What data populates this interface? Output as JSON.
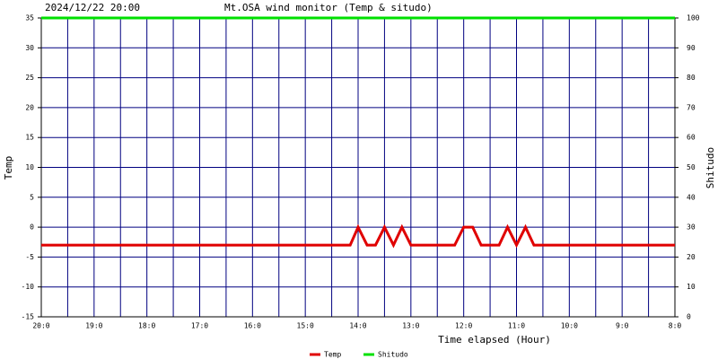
{
  "chart_data": {
    "type": "line",
    "title": "Mt.OSA wind monitor (Temp & situdo)",
    "subtitle": "2024/12/22 20:00",
    "x_label": "Time elapsed (Hour)",
    "y_label": "Temp",
    "y2_label": "Shitudo",
    "xlim": [
      0,
      12
    ],
    "xticks": [
      {
        "value": 0,
        "label": "20:0"
      },
      {
        "value": 1,
        "label": "19:0"
      },
      {
        "value": 2,
        "label": "18:0"
      },
      {
        "value": 3,
        "label": "17:0"
      },
      {
        "value": 4,
        "label": "16:0"
      },
      {
        "value": 5,
        "label": "15:0"
      },
      {
        "value": 6,
        "label": "14:0"
      },
      {
        "value": 7,
        "label": "13:0"
      },
      {
        "value": 8,
        "label": "12:0"
      },
      {
        "value": 9,
        "label": "11:0"
      },
      {
        "value": 10,
        "label": "10:0"
      },
      {
        "value": 11,
        "label": "9:0"
      },
      {
        "value": 12,
        "label": "8:0"
      }
    ],
    "xminorticks": [
      0.5,
      1.5,
      2.5,
      3.5,
      4.5,
      5.5,
      6.5,
      7.5,
      8.5,
      9.5,
      10.5,
      11.5
    ],
    "ylim": [
      -15,
      35
    ],
    "yticks": [
      -15,
      -10,
      -5,
      0,
      5,
      10,
      15,
      20,
      25,
      30,
      35
    ],
    "y2lim": [
      0,
      100
    ],
    "y2ticks": [
      0,
      10,
      20,
      30,
      40,
      50,
      60,
      70,
      80,
      90,
      100
    ],
    "grid": true,
    "series": [
      {
        "name": "Temp",
        "color": "#e00000",
        "x": [
          0,
          5.85,
          6.0,
          6.17,
          6.33,
          6.5,
          6.67,
          6.83,
          7.0,
          7.83,
          8.0,
          8.17,
          8.33,
          8.67,
          8.83,
          9.0,
          9.17,
          9.33,
          12
        ],
        "values": [
          -3,
          -3,
          0,
          -3,
          -3,
          0,
          -3,
          0,
          -3,
          -3,
          0,
          0,
          -3,
          -3,
          0,
          -3,
          0,
          -3,
          -3
        ]
      },
      {
        "name": "Shitudo",
        "color": "#00e000",
        "axis": "y2",
        "x": [
          0,
          12
        ],
        "values": [
          100,
          100
        ]
      }
    ]
  }
}
